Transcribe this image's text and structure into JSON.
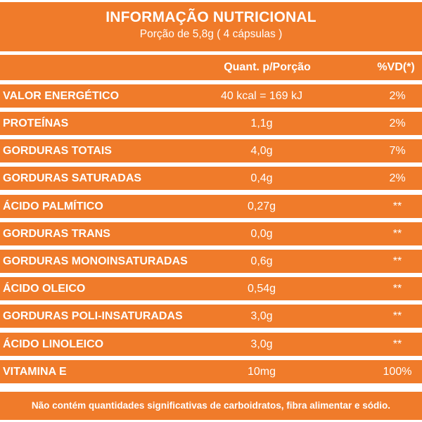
{
  "header": {
    "title": "INFORMAÇÃO NUTRICIONAL",
    "portion": "Porção de 5,8g ( 4 cápsulas )"
  },
  "columns": {
    "quantity": "Quant. p/Porção",
    "daily_value": "%VD(*)"
  },
  "rows": [
    {
      "nutrient": "VALOR ENERGÉTICO",
      "quantity": "40 kcal = 169 kJ",
      "dv": "2%"
    },
    {
      "nutrient": "PROTEÍNAS",
      "quantity": "1,1g",
      "dv": "2%"
    },
    {
      "nutrient": "GORDURAS TOTAIS",
      "quantity": "4,0g",
      "dv": "7%"
    },
    {
      "nutrient": "GORDURAS SATURADAS",
      "quantity": "0,4g",
      "dv": "2%"
    },
    {
      "nutrient": "ÁCIDO PALMÍTICO",
      "quantity": "0,27g",
      "dv": "**"
    },
    {
      "nutrient": "GORDURAS TRANS",
      "quantity": "0,0g",
      "dv": "**"
    },
    {
      "nutrient": "GORDURAS MONOINSATURADAS",
      "quantity": "0,6g",
      "dv": "**"
    },
    {
      "nutrient": "ÁCIDO OLEICO",
      "quantity": "0,54g",
      "dv": "**"
    },
    {
      "nutrient": "GORDURAS POLI-INSATURADAS",
      "quantity": "3,0g",
      "dv": "**"
    },
    {
      "nutrient": "ÁCIDO LINOLEICO",
      "quantity": "3,0g",
      "dv": "**"
    },
    {
      "nutrient": "VITAMINA E",
      "quantity": "10mg",
      "dv": "100%"
    }
  ],
  "footnote": "Não contém quantidades significativas de carboidratos, fibra alimentar e sódio.",
  "colors": {
    "band": "#f07b2a",
    "text": "#ffffff",
    "separator": "#ffffff"
  }
}
